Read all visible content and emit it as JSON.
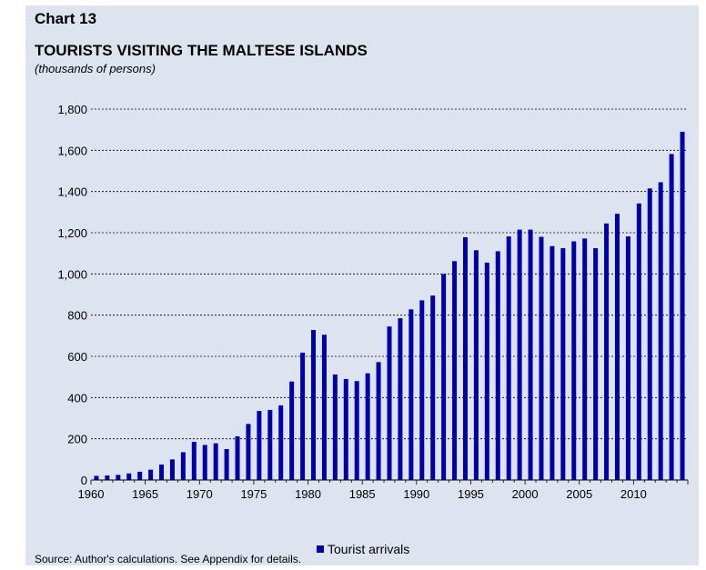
{
  "header": {
    "chart_label": "Chart 13",
    "title": "TOURISTS VISITING THE MALTESE ISLANDS",
    "subtitle": "(thousands of persons)"
  },
  "legend": {
    "label": "Tourist arrivals"
  },
  "source": "Source: Author's calculations. See Appendix for details.",
  "colors": {
    "bar": "#0000a8",
    "background": "#dde3ef",
    "grid": "#000000"
  },
  "chart_data": {
    "type": "bar",
    "title": "TOURISTS VISITING THE MALTESE ISLANDS",
    "ylabel": "(thousands of persons)",
    "ylim": [
      0,
      1800
    ],
    "yticks": [
      0,
      200,
      400,
      600,
      800,
      1000,
      1200,
      1400,
      1600,
      1800
    ],
    "ytick_labels": [
      "0",
      "200",
      "400",
      "600",
      "800",
      "1,000",
      "1,200",
      "1,400",
      "1,600",
      "1,800"
    ],
    "xtick_labels": [
      "1960",
      "1965",
      "1970",
      "1975",
      "1980",
      "1985",
      "1990",
      "1995",
      "2000",
      "2005",
      "2010"
    ],
    "grid": "horizontal-dashed",
    "legend_position": "bottom-center",
    "categories": [
      "1960",
      "1961",
      "1962",
      "1963",
      "1964",
      "1965",
      "1966",
      "1967",
      "1968",
      "1969",
      "1970",
      "1971",
      "1972",
      "1973",
      "1974",
      "1975",
      "1976",
      "1977",
      "1978",
      "1979",
      "1980",
      "1981",
      "1982",
      "1983",
      "1984",
      "1985",
      "1986",
      "1987",
      "1988",
      "1989",
      "1990",
      "1991",
      "1992",
      "1993",
      "1994",
      "1995",
      "1996",
      "1997",
      "1998",
      "1999",
      "2000",
      "2001",
      "2002",
      "2003",
      "2004",
      "2005",
      "2006",
      "2007",
      "2008",
      "2009",
      "2010",
      "2011",
      "2012",
      "2013",
      "2014"
    ],
    "series": [
      {
        "name": "Tourist arrivals",
        "values": [
          20,
          22,
          25,
          32,
          40,
          50,
          75,
          100,
          135,
          185,
          170,
          178,
          150,
          212,
          272,
          335,
          340,
          362,
          478,
          618,
          728,
          705,
          512,
          490,
          480,
          518,
          572,
          745,
          785,
          828,
          872,
          895,
          1000,
          1062,
          1178,
          1115,
          1055,
          1110,
          1182,
          1215,
          1215,
          1180,
          1135,
          1125,
          1158,
          1172,
          1125,
          1245,
          1292,
          1182,
          1342,
          1415,
          1445,
          1582,
          1690
        ]
      }
    ]
  }
}
